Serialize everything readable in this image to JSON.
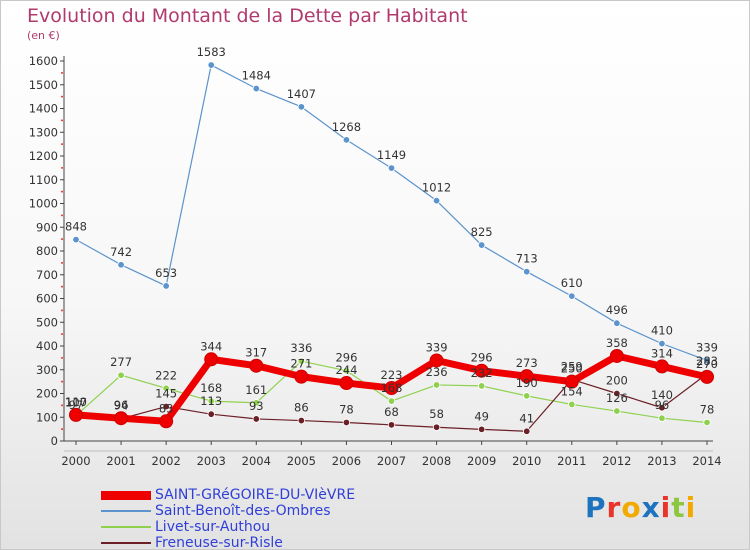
{
  "title": "Evolution du Montant de la Dette par Habitant",
  "unit": "(en €)",
  "brand": {
    "text": "Proxiti",
    "colors": [
      "#1e73be",
      "#e8342a",
      "#f2a900",
      "#1e73be",
      "#e8342a",
      "#8dc63f",
      "#f2a900"
    ]
  },
  "chart_data": {
    "type": "line",
    "x": [
      2000,
      2001,
      2002,
      2003,
      2004,
      2005,
      2006,
      2007,
      2008,
      2009,
      2010,
      2011,
      2012,
      2013,
      2014
    ],
    "ylim": [
      0,
      1650
    ],
    "yticks": [
      0,
      100,
      200,
      300,
      400,
      500,
      600,
      700,
      800,
      900,
      1000,
      1100,
      1200,
      1300,
      1400,
      1500,
      1600
    ],
    "grid": false,
    "legend_position": "bottom-left",
    "series": [
      {
        "name": "Saint-Benoît-des-Ombres",
        "color": "#5b93cc",
        "width": 1.2,
        "marker": 3.3,
        "values": [
          848,
          742,
          653,
          1583,
          1484,
          1407,
          1268,
          1149,
          1012,
          825,
          713,
          610,
          496,
          410,
          339
        ]
      },
      {
        "name": "Livet-sur-Authou",
        "color": "#8fd14f",
        "width": 1.2,
        "marker": 3.3,
        "values": [
          107,
          277,
          222,
          168,
          161,
          336,
          296,
          168,
          236,
          232,
          190,
          154,
          126,
          96,
          78
        ]
      },
      {
        "name": "Freneuse-sur-Risle",
        "color": "#6b1f27",
        "width": 1.2,
        "marker": 3.3,
        "values": [
          97,
          94,
          145,
          113,
          93,
          86,
          78,
          68,
          58,
          49,
          41,
          259,
          200,
          140,
          283
        ]
      },
      {
        "name": "SAINT-GRéGOIRE-DU-VIèVRE",
        "color": "#ee0000",
        "width": 7,
        "marker": 6.5,
        "values": [
          110,
          96,
          83,
          344,
          317,
          271,
          244,
          223,
          339,
          296,
          273,
          250,
          358,
          314,
          270
        ]
      }
    ],
    "data_labels": [
      {
        "series": 0,
        "labels": [
          "848",
          "742",
          "653",
          "1583",
          "1484",
          "1407",
          "1268",
          "1149",
          "1012",
          "825",
          "713",
          "610",
          "496",
          "410",
          "339"
        ]
      },
      {
        "series": 1,
        "labels": [
          "107",
          "277",
          "222",
          "168",
          "161",
          "336",
          "296",
          "168",
          "236",
          "232",
          "190",
          "154",
          "126",
          "96",
          "78"
        ]
      },
      {
        "series": 2,
        "labels": [
          "97",
          "94",
          "145",
          "113",
          "93",
          "86",
          "78",
          "68",
          "58",
          "49",
          "41",
          "259",
          "200",
          "140",
          "283"
        ]
      },
      {
        "series": 3,
        "labels": [
          "110",
          "96",
          "83",
          "344",
          "317",
          "271",
          "244",
          "223",
          "339",
          "296",
          "273",
          "250",
          "358",
          "314",
          "270"
        ]
      }
    ],
    "legend_order": [
      3,
      0,
      1,
      2
    ]
  }
}
